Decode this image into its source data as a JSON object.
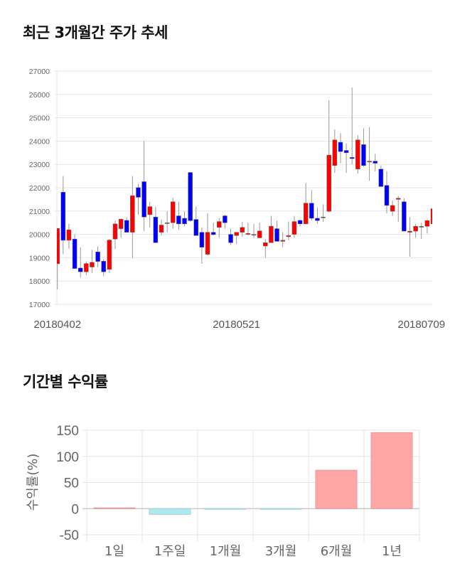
{
  "sections": {
    "price_title": "최근 3개월간 주가 추세",
    "return_title": "기간별 수익률"
  },
  "colors": {
    "up": "#ff0000",
    "down": "#0000ff",
    "bar_positive": "#ffa6a6",
    "bar_negative": "#b0e8f0"
  },
  "chart_data": [
    {
      "type": "candlestick",
      "title": "최근 3개월간 주가 추세",
      "ylim": [
        17000,
        27000
      ],
      "y_ticks": [
        "17000",
        "18000",
        "19000",
        "20000",
        "21000",
        "22000",
        "23000",
        "24000",
        "25000",
        "26000",
        "27000"
      ],
      "x_ticks": [
        {
          "label": "20180402",
          "index": 0
        },
        {
          "label": "20180521",
          "index": 31
        },
        {
          "label": "20180709",
          "index": 63
        }
      ],
      "grid": true,
      "ohlc": [
        [
          18740,
          20255,
          17640,
          20255
        ],
        [
          21810,
          22504,
          19146,
          19747
        ],
        [
          19747,
          20450,
          19390,
          20196
        ],
        [
          19800,
          20000,
          18537,
          18537
        ],
        [
          18557,
          19450,
          18150,
          18395
        ],
        [
          18395,
          18840,
          18250,
          18750
        ],
        [
          18600,
          19340,
          18350,
          18800
        ],
        [
          19250,
          19490,
          18600,
          18840
        ],
        [
          18850,
          18940,
          18200,
          18395
        ],
        [
          18500,
          19800,
          18350,
          19757
        ],
        [
          19800,
          20590,
          19370,
          20450
        ],
        [
          20245,
          20690,
          19850,
          20650
        ],
        [
          20600,
          20740,
          20090,
          20090
        ],
        [
          20090,
          22500,
          18990,
          21660
        ],
        [
          22005,
          22160,
          20845,
          21590
        ],
        [
          22260,
          24010,
          20145,
          20745
        ],
        [
          20845,
          21400,
          20300,
          21190
        ],
        [
          20745,
          21190,
          19645,
          19645
        ],
        [
          20090,
          20640,
          19950,
          20400
        ],
        [
          20500,
          20990,
          20090,
          20500
        ],
        [
          20500,
          21560,
          20245,
          21400
        ],
        [
          20795,
          21400,
          20195,
          20450
        ],
        [
          20690,
          20990,
          20345,
          20450
        ],
        [
          22655,
          22655,
          20540,
          20590
        ],
        [
          20640,
          21190,
          19950,
          19950
        ],
        [
          20090,
          20300,
          18740,
          19450
        ],
        [
          19146,
          20900,
          19100,
          20090
        ],
        [
          20090,
          20500,
          19950,
          19990
        ],
        [
          20300,
          20690,
          19850,
          20550
        ],
        [
          20795,
          20845,
          20245,
          20500
        ],
        [
          20000,
          20245,
          19550,
          19645
        ],
        [
          19950,
          20090,
          19600,
          20090
        ],
        [
          20090,
          20540,
          19900,
          20300
        ],
        [
          20000,
          20500,
          19950,
          20040
        ],
        [
          20000,
          20450,
          19850,
          20000
        ],
        [
          19850,
          20500,
          19850,
          20150
        ],
        [
          19500,
          19800,
          18990,
          19645
        ],
        [
          19645,
          20795,
          19645,
          20350
        ],
        [
          20245,
          20590,
          19700,
          19700
        ],
        [
          19700,
          20090,
          19450,
          19747
        ],
        [
          19900,
          20550,
          19750,
          19950
        ],
        [
          20000,
          20795,
          19850,
          20550
        ],
        [
          20600,
          20640,
          20345,
          20450
        ],
        [
          20450,
          22210,
          20450,
          21340
        ],
        [
          21340,
          21900,
          20590,
          20690
        ],
        [
          20690,
          21140,
          20450,
          20590
        ],
        [
          20745,
          21290,
          20540,
          20745
        ],
        [
          20990,
          25750,
          20940,
          23400
        ],
        [
          22950,
          24500,
          22640,
          24050
        ],
        [
          23950,
          24340,
          23050,
          23550
        ],
        [
          23600,
          23900,
          22640,
          23500
        ],
        [
          23300,
          26300,
          23000,
          23250
        ],
        [
          22800,
          24250,
          22600,
          24050
        ],
        [
          23850,
          24550,
          22900,
          22950
        ],
        [
          23100,
          24600,
          22300,
          23140
        ],
        [
          23140,
          23450,
          22700,
          23050
        ],
        [
          22800,
          22950,
          22050,
          22050
        ],
        [
          22100,
          22700,
          20900,
          21240
        ],
        [
          20990,
          21450,
          20795,
          21240
        ],
        [
          21500,
          21650,
          20540,
          21550
        ],
        [
          21400,
          21550,
          20140,
          20140
        ],
        [
          20090,
          20745,
          19045,
          20140
        ],
        [
          20140,
          20450,
          19850,
          20345
        ],
        [
          20345,
          20500,
          19800,
          20345
        ],
        [
          20345,
          20640,
          20040,
          20590
        ],
        [
          20450,
          21200,
          20350,
          21100
        ]
      ]
    },
    {
      "type": "bar",
      "title": "기간별 수익률",
      "categories": [
        "1일",
        "1주일",
        "1개월",
        "3개월",
        "6개월",
        "1년"
      ],
      "values": [
        1.5,
        -11,
        -1,
        -0.5,
        73.5,
        145.5
      ],
      "ylabel": "수익률(%)",
      "ylim": [
        -50,
        150
      ],
      "y_ticks": [
        "-50",
        "0",
        "50",
        "100",
        "150"
      ],
      "grid": true
    }
  ]
}
